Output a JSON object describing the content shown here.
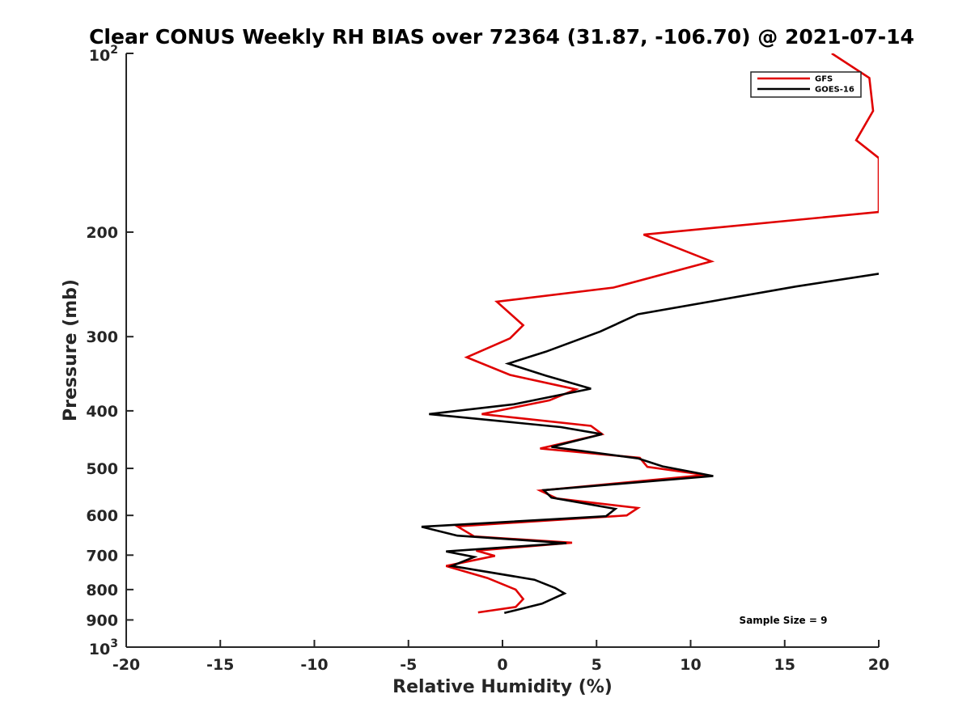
{
  "chart_data": {
    "type": "line",
    "title": "Clear CONUS Weekly RH BIAS over 72364 (31.87, -106.70) @ 2021-07-14",
    "xlabel": "Relative Humidity (%)",
    "ylabel": "Pressure (mb)",
    "xlim": [
      -20,
      20
    ],
    "ylim": [
      100,
      1000
    ],
    "y_scale": "log",
    "y_reversed": true,
    "grid": false,
    "legend_position": "top-right",
    "x_ticks": [
      "-20",
      "-15",
      "-10",
      "-5",
      "0",
      "5",
      "10",
      "15",
      "20"
    ],
    "y_ticks": [
      {
        "value": 100,
        "base": "10",
        "exp": "2"
      },
      {
        "value": 200,
        "label": "200"
      },
      {
        "value": 300,
        "label": "300"
      },
      {
        "value": 400,
        "label": "400"
      },
      {
        "value": 500,
        "label": "500"
      },
      {
        "value": 600,
        "label": "600"
      },
      {
        "value": 700,
        "label": "700"
      },
      {
        "value": 800,
        "label": "800"
      },
      {
        "value": 900,
        "label": "900"
      },
      {
        "value": 1000,
        "base": "10",
        "exp": "3"
      }
    ],
    "series": [
      {
        "name": "GFS",
        "color": "#e00000",
        "points": [
          [
            17.5,
            100
          ],
          [
            19.5,
            110
          ],
          [
            19.7,
            125
          ],
          [
            18.8,
            140
          ],
          [
            20,
            150
          ],
          [
            20,
            185
          ],
          [
            7.5,
            202
          ],
          [
            11.1,
            224
          ],
          [
            5.9,
            248
          ],
          [
            -0.3,
            262
          ],
          [
            1.1,
            287
          ],
          [
            0.4,
            302
          ],
          [
            -1.9,
            325
          ],
          [
            0.4,
            348
          ],
          [
            3.9,
            368
          ],
          [
            2.5,
            384
          ],
          [
            -1.1,
            405
          ],
          [
            4.7,
            424
          ],
          [
            5.3,
            438
          ],
          [
            2.0,
            463
          ],
          [
            7.3,
            480
          ],
          [
            7.7,
            497
          ],
          [
            10.8,
            513
          ],
          [
            2.0,
            545
          ],
          [
            2.9,
            562
          ],
          [
            7.2,
            583
          ],
          [
            6.6,
            600
          ],
          [
            -2.4,
            626
          ],
          [
            -1.5,
            651
          ],
          [
            3.7,
            667
          ],
          [
            -1.4,
            688
          ],
          [
            -0.4,
            702
          ],
          [
            -3.0,
            730
          ],
          [
            -0.8,
            765
          ],
          [
            0.7,
            800
          ],
          [
            1.1,
            830
          ],
          [
            0.7,
            856
          ],
          [
            -1.3,
            874
          ]
        ]
      },
      {
        "name": "GOES-16",
        "color": "#000000",
        "points": [
          [
            20,
            235
          ],
          [
            15.6,
            247
          ],
          [
            7.2,
            275
          ],
          [
            5.2,
            294
          ],
          [
            2.3,
            318
          ],
          [
            0.3,
            333
          ],
          [
            2.3,
            349
          ],
          [
            4.7,
            367
          ],
          [
            0.6,
            390
          ],
          [
            -3.9,
            405
          ],
          [
            3.1,
            426
          ],
          [
            5.3,
            438
          ],
          [
            2.6,
            460
          ],
          [
            7.2,
            481
          ],
          [
            8.5,
            496
          ],
          [
            11.2,
            515
          ],
          [
            2.2,
            544
          ],
          [
            2.6,
            560
          ],
          [
            6.0,
            585
          ],
          [
            5.5,
            602
          ],
          [
            -4.3,
            627
          ],
          [
            -2.4,
            649
          ],
          [
            3.4,
            668
          ],
          [
            -3.0,
            690
          ],
          [
            -1.5,
            705
          ],
          [
            -2.7,
            730
          ],
          [
            1.7,
            770
          ],
          [
            2.8,
            795
          ],
          [
            3.3,
            812
          ],
          [
            2.1,
            845
          ],
          [
            0.1,
            876
          ]
        ]
      }
    ],
    "annotation": "Sample Size = 9"
  }
}
